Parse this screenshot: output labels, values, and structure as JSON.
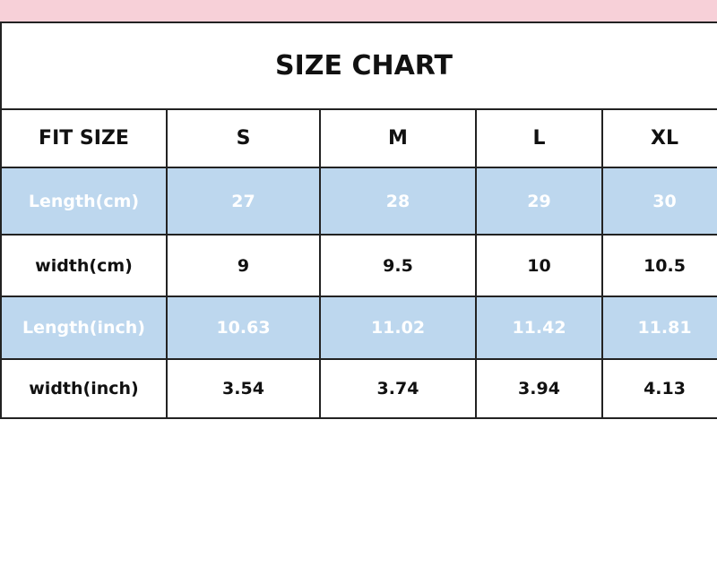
{
  "title": "SIZE CHART",
  "colors": {
    "band": "#f7d0d8",
    "highlight_row": "#bdd7ee"
  },
  "header": [
    "FIT SIZE",
    "S",
    "M",
    "L",
    "XL"
  ],
  "rows": [
    {
      "label": "Length(cm)",
      "values": [
        "27",
        "28",
        "29",
        "30"
      ]
    },
    {
      "label": "width(cm)",
      "values": [
        "9",
        "9.5",
        "10",
        "10.5"
      ]
    },
    {
      "label": "Length(inch)",
      "values": [
        "10.63",
        "11.02",
        "11.42",
        "11.81"
      ]
    },
    {
      "label": "width(inch)",
      "values": [
        "3.54",
        "3.74",
        "3.94",
        "4.13"
      ]
    }
  ]
}
